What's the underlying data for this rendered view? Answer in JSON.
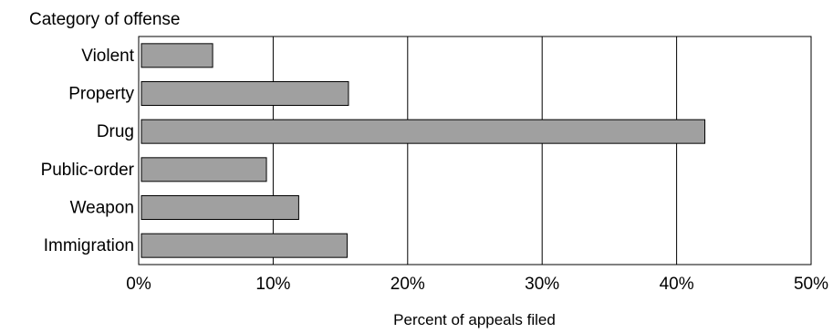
{
  "chart_data": {
    "type": "bar",
    "orientation": "horizontal",
    "title": "Category of offense",
    "xlabel": "Percent of appeals filed",
    "ylabel": "",
    "categories": [
      "Violent",
      "Property",
      "Drug",
      "Public-order",
      "Weapon",
      "Immigration"
    ],
    "values": [
      5.5,
      15.6,
      42.1,
      9.5,
      11.9,
      15.5
    ],
    "xlim": [
      0,
      50
    ],
    "xticks": [
      0,
      10,
      20,
      30,
      40,
      50
    ],
    "xtick_labels": [
      "0%",
      "10%",
      "20%",
      "30%",
      "40%",
      "50%"
    ],
    "grid": "vertical gridlines at each tick",
    "legend": "none",
    "colors": {
      "bar_fill": "#a0a0a0",
      "bar_stroke": "#000000",
      "grid": "#000000",
      "background": "#ffffff"
    }
  }
}
